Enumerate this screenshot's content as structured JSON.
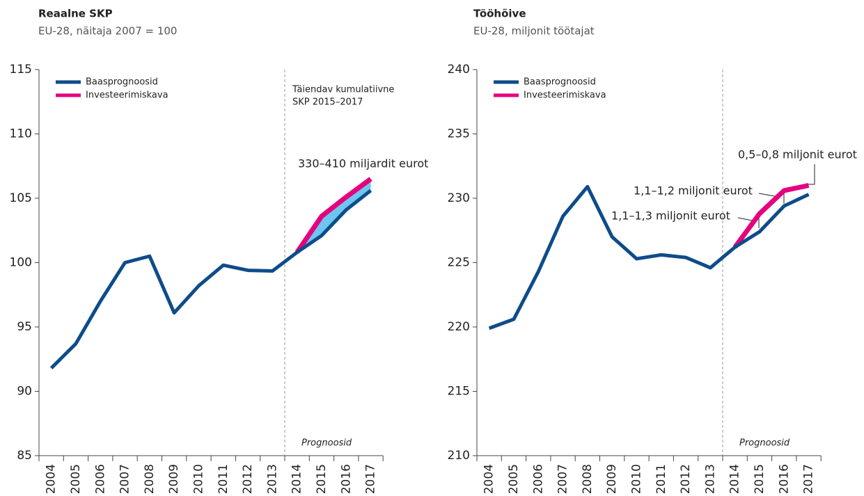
{
  "chart_data": [
    {
      "type": "line",
      "title": "Reaalne SKP",
      "subtitle": "EU-28, näitaja 2007 = 100",
      "categories": [
        "2004",
        "2005",
        "2006",
        "2007",
        "2008",
        "2009",
        "2010",
        "2011",
        "2012",
        "2013",
        "2014",
        "2015",
        "2016",
        "2017"
      ],
      "series": [
        {
          "name": "Baasprognoosid",
          "color": "#0e4c8a",
          "values": [
            91.8,
            93.7,
            97.0,
            100.0,
            100.5,
            96.1,
            98.2,
            99.8,
            99.4,
            99.35,
            100.8,
            102.1,
            104.1,
            105.6
          ]
        },
        {
          "name": "Investeerimiskava",
          "color": "#e5007e",
          "values": [
            null,
            null,
            null,
            null,
            null,
            null,
            null,
            null,
            null,
            null,
            100.8,
            103.6,
            105.1,
            106.5
          ]
        }
      ],
      "ylim": [
        85,
        115
      ],
      "yticks": [
        85,
        90,
        95,
        100,
        105,
        110,
        115
      ],
      "annotations": [
        "Täiendav kumulatiivne",
        "SKP 2015–2017",
        "330–410 miljardit eurot"
      ],
      "forecast_label": "Prognoosid",
      "band_color": "#6ec6ee"
    },
    {
      "type": "line",
      "title": "Tööhõive",
      "subtitle": "EU-28, miljonit töötajat",
      "categories": [
        "2004",
        "2005",
        "2006",
        "2007",
        "2008",
        "2009",
        "2010",
        "2011",
        "2012",
        "2013",
        "2014",
        "2015",
        "2016",
        "2017"
      ],
      "series": [
        {
          "name": "Baasprognoosid",
          "color": "#0e4c8a",
          "values": [
            219.9,
            220.6,
            224.3,
            228.6,
            230.9,
            227.0,
            225.3,
            225.6,
            225.4,
            224.6,
            226.2,
            227.4,
            229.4,
            230.3
          ]
        },
        {
          "name": "Investeerimiskava",
          "color": "#e5007e",
          "values": [
            null,
            null,
            null,
            null,
            null,
            null,
            null,
            null,
            null,
            null,
            226.2,
            228.8,
            230.6,
            231.0
          ]
        }
      ],
      "ylim": [
        210,
        240
      ],
      "yticks": [
        210,
        215,
        220,
        225,
        230,
        235,
        240
      ],
      "annotations": [
        "0,5–0,8 miljonit eurot",
        "1,1–1,2 miljonit eurot",
        "1,1–1,3 miljonit eurot"
      ],
      "forecast_label": "Prognoosid"
    }
  ]
}
